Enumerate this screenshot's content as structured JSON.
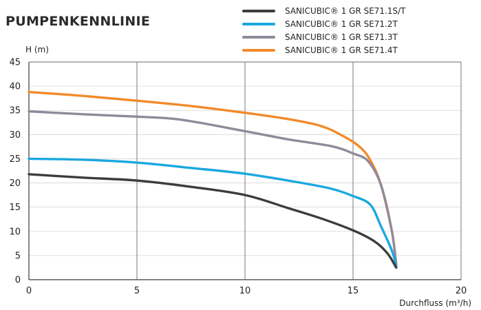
{
  "chart_data": {
    "type": "line",
    "title": "PUMPENKENNLINIE",
    "xlabel": "Durchfluss (m³/h)",
    "ylabel": "H (m)",
    "xlim": [
      0,
      20
    ],
    "ylim": [
      0,
      45
    ],
    "xticks": [
      0,
      5,
      10,
      15,
      20
    ],
    "yticks": [
      0,
      5,
      10,
      15,
      20,
      25,
      30,
      35,
      40,
      45
    ],
    "grid": "vertical",
    "legend_position": "top-right",
    "series": [
      {
        "name": "SANICUBIC® 1 GR SE71.1S/T",
        "color": "#3c3c3c",
        "points": [
          [
            0,
            21.8
          ],
          [
            2.5,
            21.1
          ],
          [
            5,
            20.5
          ],
          [
            7.5,
            19.2
          ],
          [
            10,
            17.5
          ],
          [
            12,
            14.8
          ],
          [
            13.5,
            12.7
          ],
          [
            15,
            10.2
          ],
          [
            16,
            7.9
          ],
          [
            16.6,
            5.4
          ],
          [
            17,
            2.5
          ]
        ]
      },
      {
        "name": "SANICUBIC® 1 GR SE71.2T",
        "color": "#1aa8df",
        "points": [
          [
            0,
            25
          ],
          [
            2.5,
            24.8
          ],
          [
            5,
            24.2
          ],
          [
            7.5,
            23.1
          ],
          [
            10,
            21.9
          ],
          [
            12.5,
            20.1
          ],
          [
            14,
            18.8
          ],
          [
            15,
            17.3
          ],
          [
            15.8,
            15.5
          ],
          [
            16.3,
            11
          ],
          [
            16.8,
            6
          ],
          [
            17,
            2.8
          ]
        ]
      },
      {
        "name": "SANICUBIC® 1 GR SE71.3T",
        "color": "#8f8a9b",
        "points": [
          [
            0,
            34.8
          ],
          [
            2.5,
            34.2
          ],
          [
            5,
            33.7
          ],
          [
            7,
            33.1
          ],
          [
            10,
            30.7
          ],
          [
            12,
            29
          ],
          [
            14,
            27.6
          ],
          [
            15,
            26.1
          ],
          [
            15.7,
            24.5
          ],
          [
            16.3,
            19.5
          ],
          [
            16.8,
            10
          ],
          [
            17,
            3
          ]
        ]
      },
      {
        "name": "SANICUBIC® 1 GR SE71.4T",
        "color": "#f28a2a",
        "points": [
          [
            0,
            38.8
          ],
          [
            2.5,
            38
          ],
          [
            5,
            37
          ],
          [
            7.5,
            35.9
          ],
          [
            10,
            34.5
          ],
          [
            12,
            33.2
          ],
          [
            13.5,
            31.8
          ],
          [
            14.5,
            29.8
          ],
          [
            15.3,
            27.5
          ],
          [
            15.8,
            24.7
          ],
          [
            16.3,
            19.5
          ],
          [
            16.8,
            10
          ],
          [
            17,
            3.2
          ]
        ]
      }
    ]
  }
}
